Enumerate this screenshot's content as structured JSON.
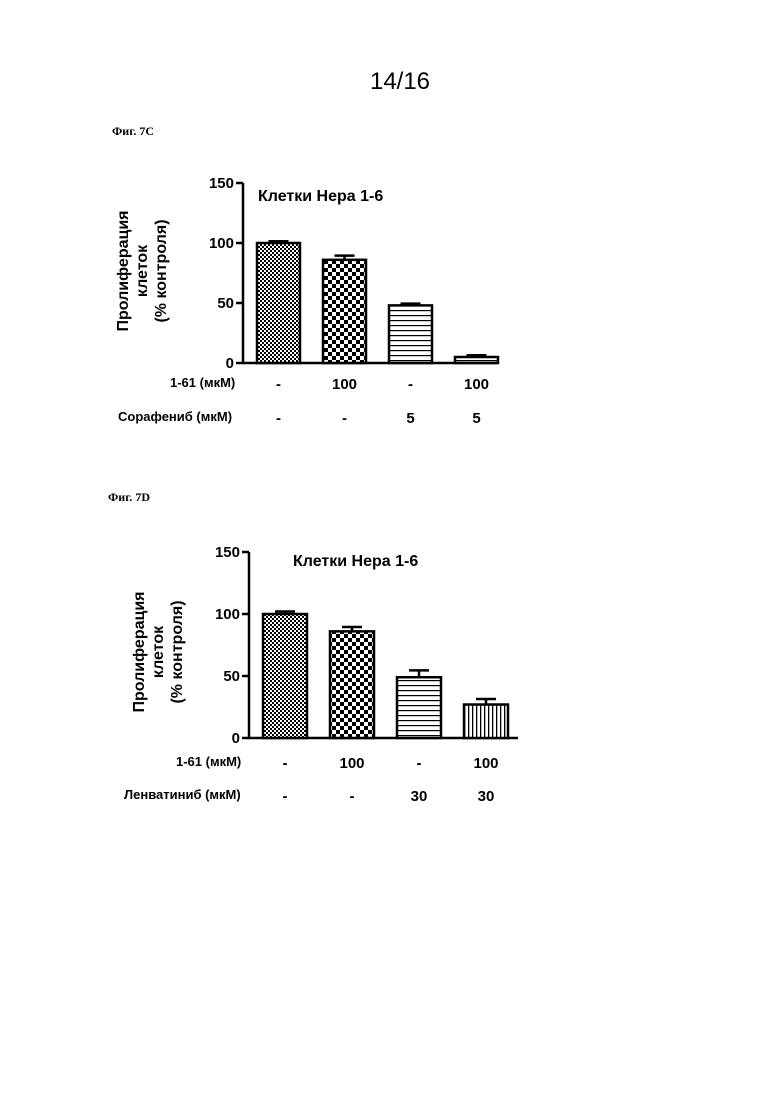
{
  "page": {
    "number": "14/16"
  },
  "chart_data": [
    {
      "fig_label": "Фиг. 7C",
      "type": "bar",
      "title": "Клетки Hepa 1-6",
      "ylabel_lines": [
        "Пролиферация",
        "клеток",
        "(% контроля)"
      ],
      "ylim": [
        0,
        150
      ],
      "yticks": [
        0,
        50,
        100,
        150
      ],
      "values": [
        100,
        86,
        48,
        5
      ],
      "errors": [
        1.5,
        3.5,
        1.5,
        1.5
      ],
      "patterns": [
        "fine-check",
        "coarse-check",
        "horizontal",
        "horizontal"
      ],
      "conditions": [
        {
          "label": "1-61 (мкМ)",
          "values": [
            "-",
            "100",
            "-",
            "100"
          ]
        },
        {
          "label": "Сорафениб (мкМ)",
          "values": [
            "-",
            "-",
            "5",
            "5"
          ]
        }
      ]
    },
    {
      "fig_label": "Фиг. 7D",
      "type": "bar",
      "title": "Клетки Hepa 1-6",
      "ylabel_lines": [
        "Пролиферация",
        "клеток",
        "(% контроля)"
      ],
      "ylim": [
        0,
        150
      ],
      "yticks": [
        0,
        50,
        100,
        150
      ],
      "values": [
        100,
        86,
        49,
        27
      ],
      "errors": [
        2,
        3.5,
        5.5,
        4.5
      ],
      "patterns": [
        "fine-check",
        "coarse-check",
        "horizontal",
        "vertical"
      ],
      "conditions": [
        {
          "label": "1-61 (мкМ)",
          "values": [
            "-",
            "100",
            "-",
            "100"
          ]
        },
        {
          "label": "Ленватиниб (мкМ)",
          "values": [
            "-",
            "-",
            "30",
            "30"
          ]
        }
      ]
    }
  ]
}
